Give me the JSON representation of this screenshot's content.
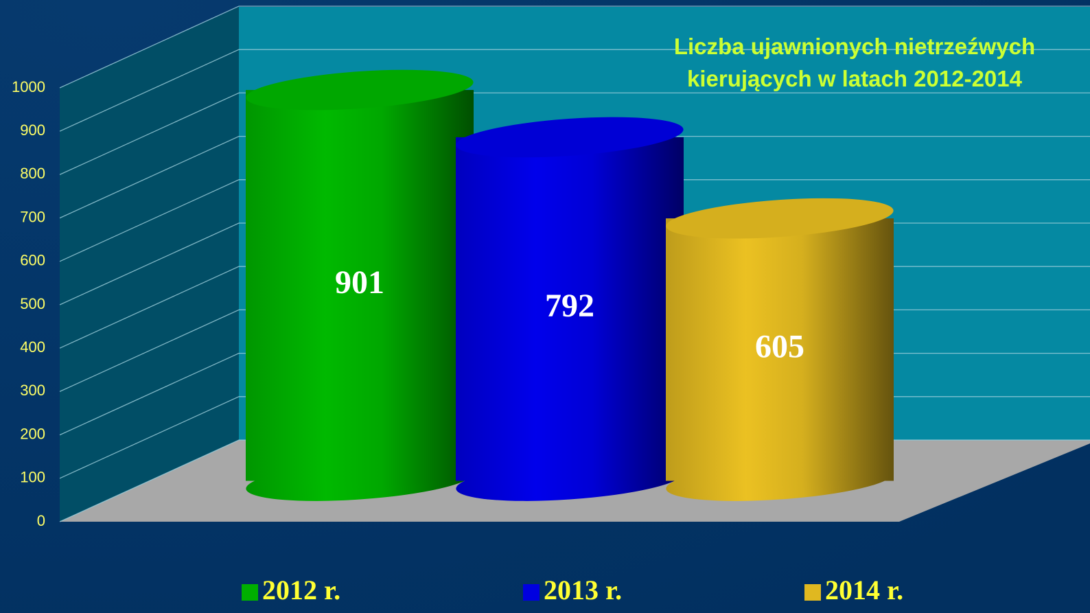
{
  "chart_data": {
    "type": "cylinder",
    "title": "Liczba ujawnionych nietrzeźwych kierujących w latach 2012-2014",
    "categories": [
      null
    ],
    "series": [
      {
        "name": "2012 r.",
        "color": "#00b000",
        "values": [
          901
        ]
      },
      {
        "name": "2013 r.",
        "color": "#0000e0",
        "values": [
          792
        ]
      },
      {
        "name": "2014 r.",
        "color": "#e0b820",
        "values": [
          605
        ]
      }
    ],
    "ylim": [
      0,
      1000
    ],
    "yticks": [
      0,
      100,
      200,
      300,
      400,
      500,
      600,
      700,
      800,
      900,
      1000
    ],
    "grid": true,
    "legend": "bottom"
  }
}
